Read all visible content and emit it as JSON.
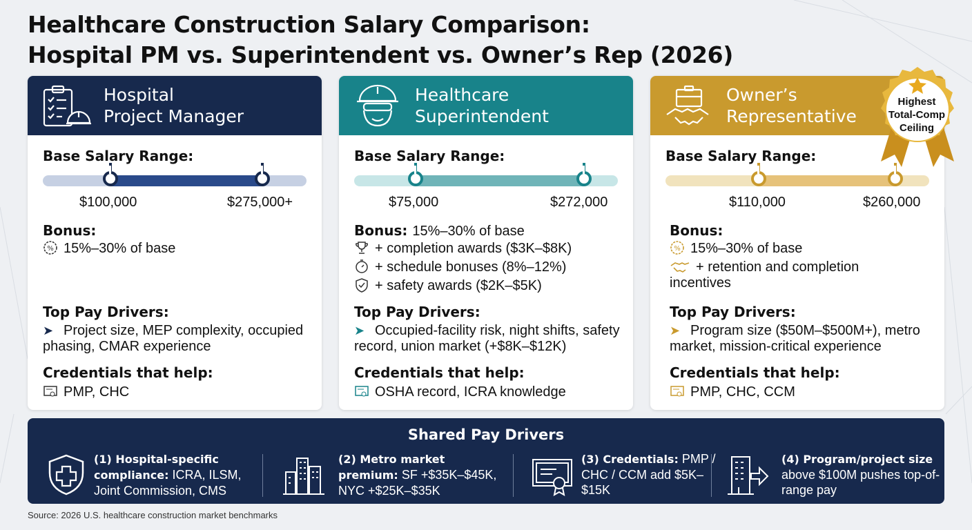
{
  "title_line1": "Healthcare Construction Salary Comparison:",
  "title_line2": "Hospital PM vs. Superintendent vs. Owner’s Rep (2026)",
  "labels": {
    "base_salary": "Base Salary Range:",
    "bonus": "Bonus:",
    "top_pay_drivers": "Top Pay Drivers:",
    "credentials": "Credentials that help:"
  },
  "colors": {
    "pm": "#17294d",
    "super": "#18838a",
    "owner": "#c99a2e"
  },
  "cards": [
    {
      "title_line1": "Hospital",
      "title_line2": "Project Manager",
      "icon": "clipboard-hardhat-icon",
      "salary_min_label": "$100,000",
      "salary_max_label": "$275,000+",
      "salary_min": 100000,
      "salary_max": 275000,
      "bonus_header_text": "",
      "bonus_items": [
        "15%–30% of base"
      ],
      "drivers": "Project size, MEP complexity, occupied phasing, CMAR experience",
      "credentials": "PMP, CHC"
    },
    {
      "title_line1": "Healthcare",
      "title_line2": "Superintendent",
      "icon": "worker-hardhat-icon",
      "salary_min_label": "$75,000",
      "salary_max_label": "$272,000",
      "salary_min": 75000,
      "salary_max": 272000,
      "bonus_header_text": "15%–30% of base",
      "bonus_items": [
        "+ completion awards ($3K–$8K)",
        "+ schedule bonuses (8%–12%)",
        "+ safety awards ($2K–$5K)"
      ],
      "drivers": "Occupied-facility risk, night shifts, safety record, union market (+$8K–$12K)",
      "credentials": "OSHA record, ICRA knowledge"
    },
    {
      "title_line1": "Owner’s",
      "title_line2": "Representative",
      "icon": "briefcase-handshake-icon",
      "salary_min_label": "$110,000",
      "salary_max_label": "$260,000",
      "salary_min": 110000,
      "salary_max": 260000,
      "bonus_header_text": "",
      "bonus_items": [
        "15%–30% of base",
        "+ retention and completion incentives"
      ],
      "drivers": "Program size ($50M–$500M+), metro market, mission-critical experience",
      "credentials": "PMP, CHC, CCM"
    }
  ],
  "badge": {
    "line1": "Highest",
    "line2": "Total-Comp",
    "line3": "Ceiling"
  },
  "shared": {
    "title": "Shared Pay Drivers",
    "items": [
      {
        "bold": "(1) Hospital-specific compliance:",
        "rest": " ICRA, ILSM, Joint Commission, CMS",
        "icon": "shield-cross-icon"
      },
      {
        "bold": "(2) Metro market premium:",
        "rest": " SF +$35K–$45K, NYC +$25K–$35K",
        "icon": "city-buildings-icon"
      },
      {
        "bold": "(3) Credentials:",
        "rest": " PMP / CHC / CCM add $5K–$15K",
        "icon": "certificate-icon"
      },
      {
        "bold": "(4) Program/project size",
        "rest": " above $100M pushes top-of-range pay",
        "icon": "building-arrow-icon"
      }
    ]
  },
  "source": "Source: 2026 U.S. healthcare construction market benchmarks"
}
